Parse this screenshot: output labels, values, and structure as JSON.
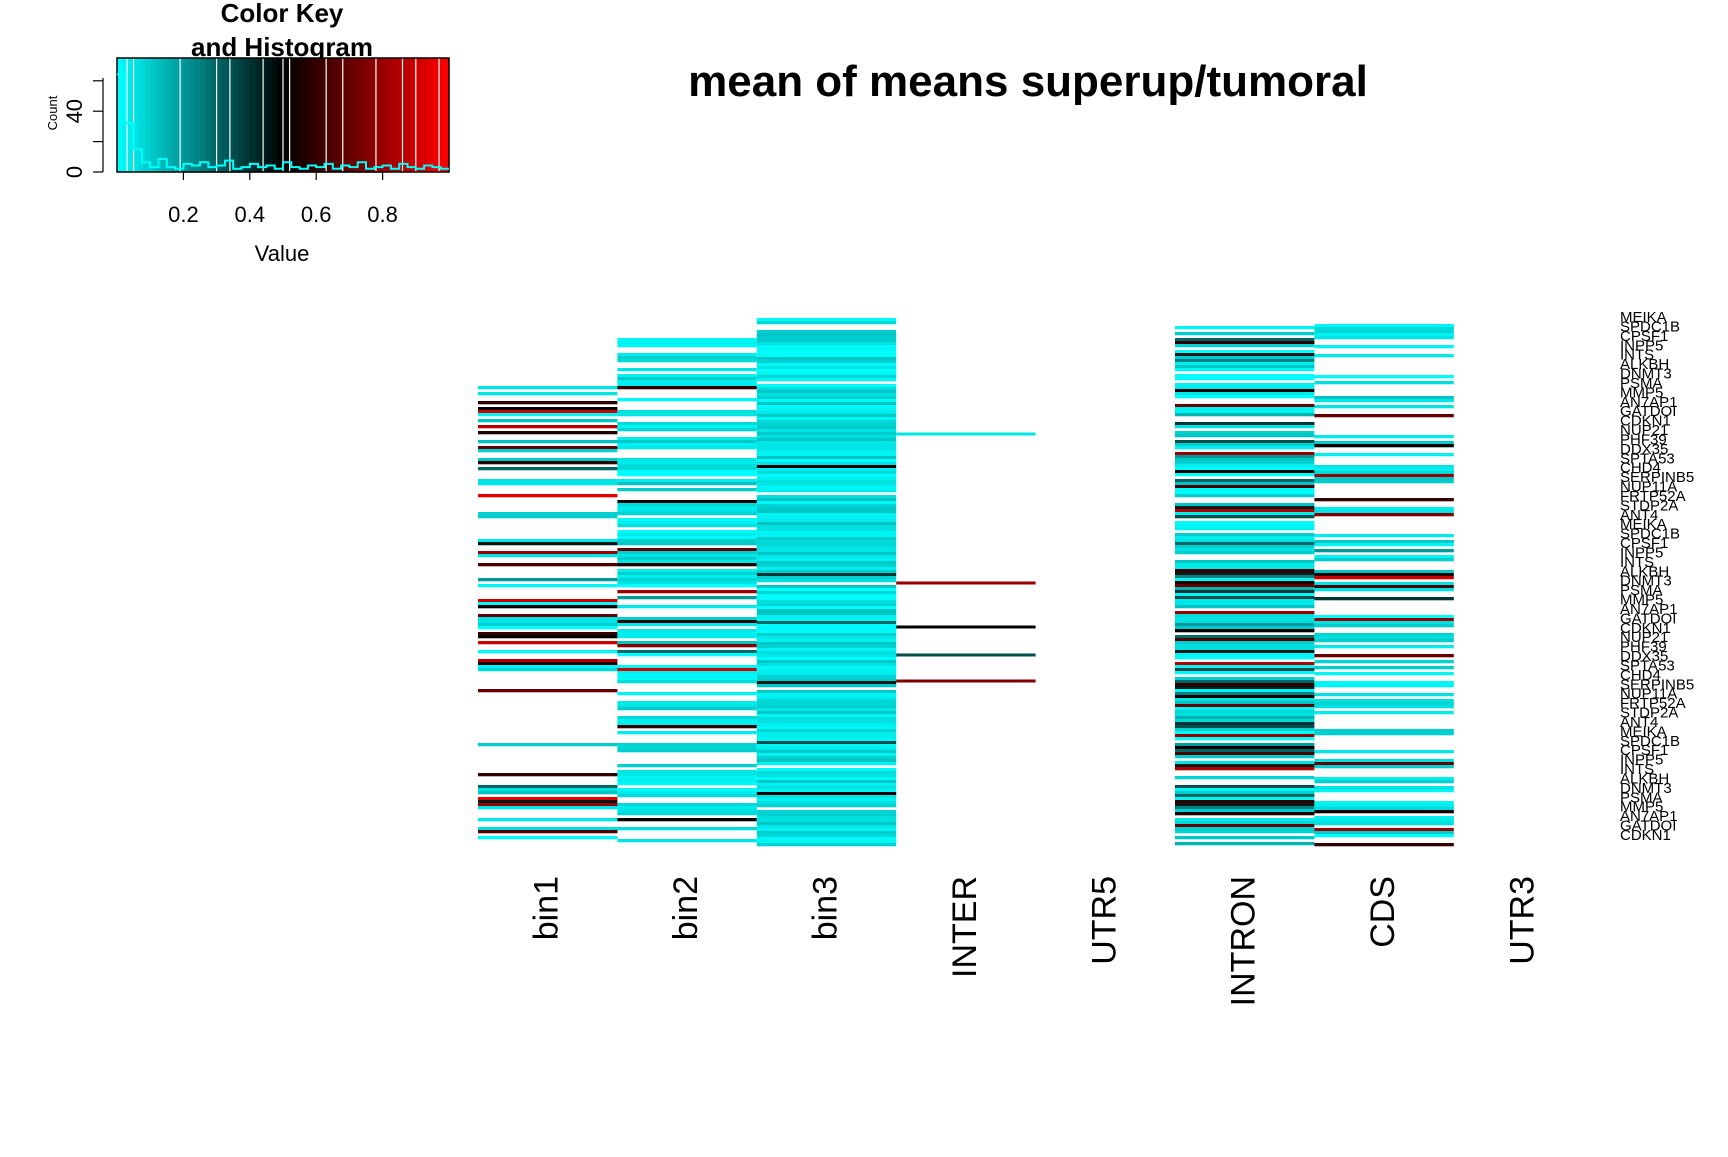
{
  "chart_data": {
    "type": "heatmap",
    "title": "mean of means superup/tumoral",
    "columns": [
      "bin1",
      "bin2",
      "bin3",
      "INTER",
      "UTR5",
      "INTRON",
      "CDS",
      "UTR3"
    ],
    "row_labels_visible": [
      "MEIKA",
      "SPDC1B",
      "CPSF1",
      "INPP5",
      "INTS",
      "ALKBH",
      "DNMT3",
      "PSMA",
      "MMP5",
      "AN7AP1",
      "GATDOI",
      "CDKN1",
      "NUP21",
      "PHF39",
      "DDX35",
      "SPTA53",
      "CHD4",
      "SERPINB5",
      "NUP11A",
      "FRTP52A",
      "STDP2A",
      "ANT4"
    ],
    "color_scale": {
      "low": "#00ffff",
      "mid": "#000000",
      "high": "#ff0000",
      "range": [
        0,
        1
      ]
    },
    "color_key": {
      "title_line1": "Color Key",
      "title_line2": "and Histogram",
      "xlabel": "Value",
      "ylabel": "Count",
      "x_ticks": [
        "0.2",
        "0.4",
        "0.6",
        "0.8"
      ],
      "y_ticks": [
        "0",
        "40"
      ]
    },
    "column_cell_values_approx": {
      "bin1": [
        0.05,
        0.6,
        0.5,
        0.9,
        0.02,
        0.85,
        0.55,
        0.7,
        0.1,
        0.6,
        0.3,
        0.95,
        0.45,
        0.8,
        0.05,
        0.65,
        0.2,
        0.9,
        0.5,
        0.7
      ],
      "bin2": [
        0.02,
        0.05,
        0.1,
        0.03,
        0.6,
        0.08,
        0.04,
        0.5,
        0.05,
        0.7,
        0.1,
        0.55,
        0.03,
        0.8,
        0.2,
        0.6,
        0.04,
        0.75,
        0.3,
        0.9
      ],
      "bin3": [
        0.01,
        0.02,
        0.01,
        0.03,
        0.02,
        0.5,
        0.01,
        0.02,
        0.4,
        0.01,
        0.02,
        0.3,
        0.01,
        0.45,
        0.02,
        0.35,
        0.01,
        0.5,
        0.02,
        0.55
      ],
      "INTER": [
        0.05,
        0.8,
        0.5,
        0.35,
        0.75
      ],
      "UTR5": [],
      "INTRON": [
        0.02,
        0.1,
        0.3,
        0.6,
        0.45,
        0.25,
        0.55,
        0.7,
        0.15,
        0.4,
        0.35,
        0.8,
        0.2,
        0.5,
        0.3,
        0.65,
        0.1,
        0.45,
        0.85,
        0.35
      ],
      "CDS": [
        0.02,
        0.05,
        0.7,
        0.04,
        0.5,
        0.03,
        0.8,
        0.1,
        0.6,
        0.05,
        0.75,
        0.2,
        0.55,
        0.9,
        0.05,
        0.65,
        0.4,
        0.8,
        0.1,
        0.7
      ],
      "UTR3": []
    },
    "legend_placement": "top-left",
    "grid": false
  }
}
